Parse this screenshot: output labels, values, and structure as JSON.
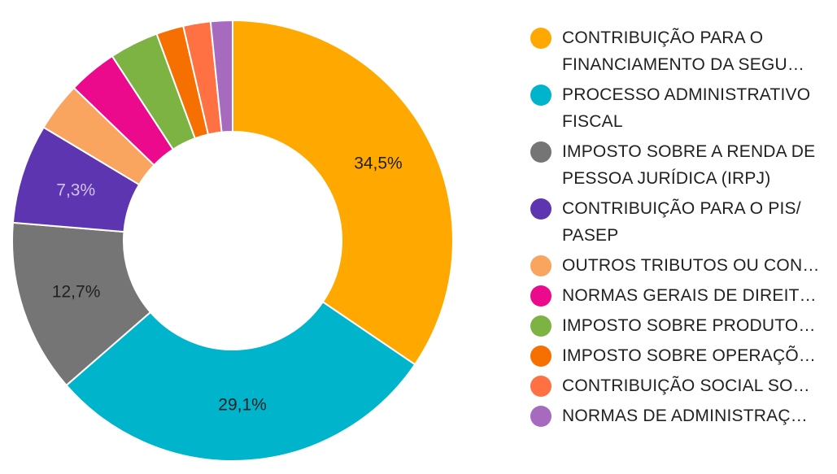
{
  "chart_data": {
    "type": "pie",
    "donut": true,
    "legend_position": "right",
    "categories": [
      "CONTRIBUIÇÃO PARA O FINANCIAMENTO DA SEGURIDADE SOCIAL",
      "PROCESSO ADMINISTRATIVO FISCAL",
      "IMPOSTO SOBRE A RENDA DE PESSOA JURÍDICA (IRPJ)",
      "CONTRIBUIÇÃO PARA O PIS/PASEP",
      "OUTROS TRIBUTOS OU CONTRIBUIÇÕES",
      "NORMAS GERAIS DE DIREITO TRIBUTÁRIO",
      "IMPOSTO SOBRE PRODUTOS INDUSTRIALIZADOS",
      "IMPOSTO SOBRE OPERAÇÕES",
      "CONTRIBUIÇÃO SOCIAL SOBRE",
      "NORMAS DE ADMINISTRAÇÃO"
    ],
    "values": [
      34.5,
      29.1,
      12.7,
      7.3,
      3.6,
      3.6,
      3.6,
      2.0,
      2.0,
      1.6
    ],
    "data_labels": [
      "34,5%",
      "29,1%",
      "12,7%",
      "7,3%",
      "",
      "",
      "",
      "",
      "",
      ""
    ],
    "colors": [
      "#FFA900",
      "#00B4CC",
      "#757575",
      "#5E35B1",
      "#F9A55F",
      "#EC0A8C",
      "#7CB342",
      "#F57000",
      "#FF7043",
      "#A66BBF"
    ],
    "label_colors": [
      "#212121",
      "#212121",
      "#212121",
      "#D1C4E9",
      "",
      "",
      "",
      "",
      "",
      ""
    ]
  },
  "legend": {
    "items": [
      {
        "label": "CONTRIBUIÇÃO PARA O FINANCIAMENTO DA SEGU…",
        "lines": 2
      },
      {
        "label": "PROCESSO ADMINISTRATIVO FISCAL",
        "lines": 2
      },
      {
        "label": "IMPOSTO SOBRE A RENDA DE PESSOA JURÍDICA (IRPJ)",
        "lines": 2
      },
      {
        "label": "CONTRIBUIÇÃO PARA O PIS/ PASEP",
        "lines": 2
      },
      {
        "label": "OUTROS TRIBUTOS OU CON…",
        "lines": 1
      },
      {
        "label": "NORMAS GERAIS DE DIREIT…",
        "lines": 1
      },
      {
        "label": "IMPOSTO SOBRE PRODUTO…",
        "lines": 1
      },
      {
        "label": "IMPOSTO SOBRE OPERAÇÕ…",
        "lines": 1
      },
      {
        "label": "CONTRIBUIÇÃO SOCIAL SO…",
        "lines": 1
      },
      {
        "label": "NORMAS DE ADMINISTRAÇ…",
        "lines": 1
      }
    ]
  }
}
